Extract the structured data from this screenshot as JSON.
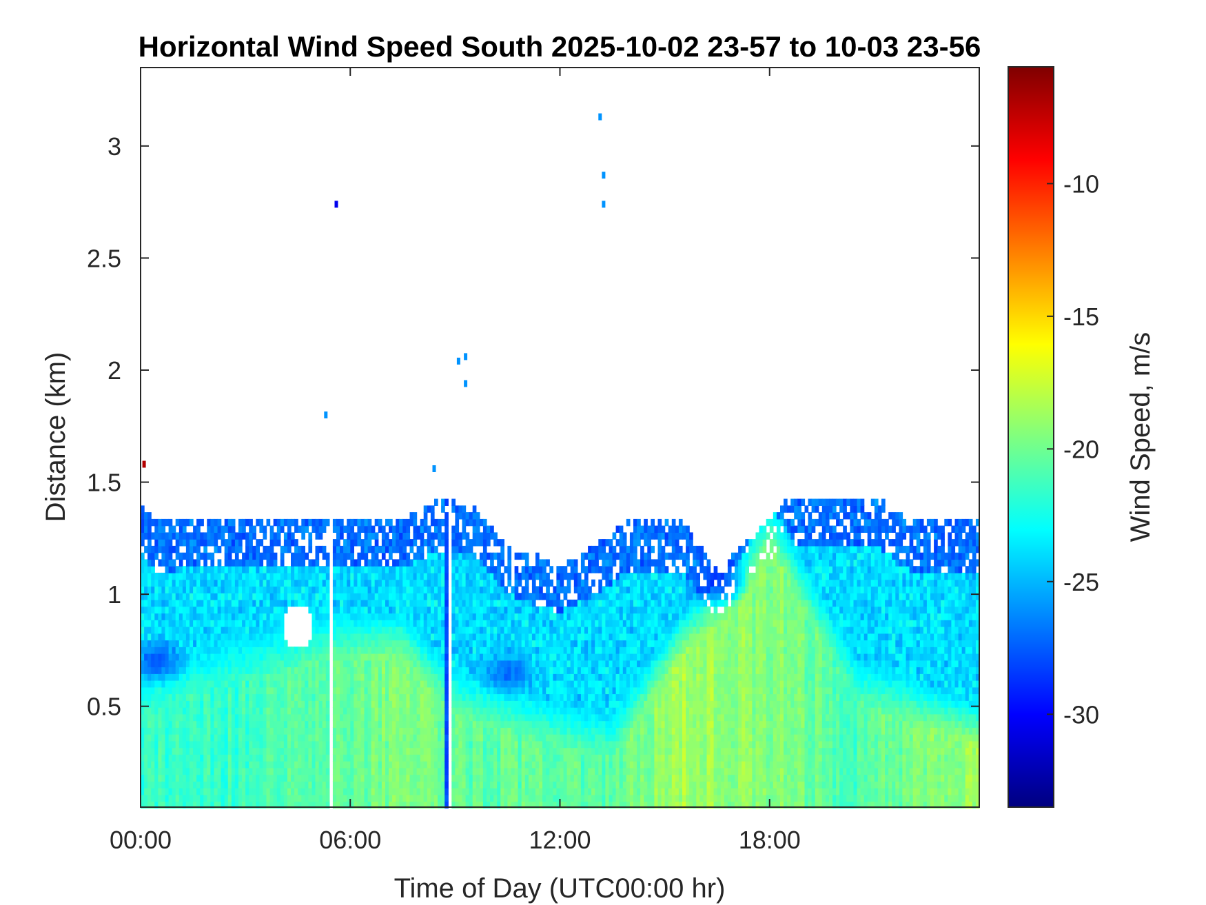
{
  "chart_data": {
    "type": "heatmap",
    "title": "Horizontal Wind Speed South 2025-10-02 23-57 to 10-03 23-56",
    "xlabel": "Time of Day (UTC00:00 hr)",
    "ylabel": "Distance (km)",
    "colorbar_label": "Wind Speed, m/s",
    "xlim": [
      0,
      24
    ],
    "ylim": [
      0.05,
      3.35
    ],
    "clim": [
      -33.5,
      -5.6
    ],
    "colormap": "jet",
    "x_ticks": [
      {
        "value": 0,
        "label": "00:00"
      },
      {
        "value": 6,
        "label": "06:00"
      },
      {
        "value": 12,
        "label": "12:00"
      },
      {
        "value": 18,
        "label": "18:00"
      }
    ],
    "y_ticks": [
      {
        "value": 0.5,
        "label": "0.5"
      },
      {
        "value": 1,
        "label": "1"
      },
      {
        "value": 1.5,
        "label": "1.5"
      },
      {
        "value": 2,
        "label": "2"
      },
      {
        "value": 2.5,
        "label": "2.5"
      },
      {
        "value": 3,
        "label": "3"
      }
    ],
    "colorbar_ticks": [
      {
        "value": -30,
        "label": "-30"
      },
      {
        "value": -25,
        "label": "-25"
      },
      {
        "value": -20,
        "label": "-20"
      },
      {
        "value": -15,
        "label": "-15"
      },
      {
        "value": -10,
        "label": "-10"
      }
    ],
    "data_top_km": [
      {
        "hour": 0.0,
        "km": 1.4
      },
      {
        "hour": 0.5,
        "km": 1.32
      },
      {
        "hour": 1.5,
        "km": 1.34
      },
      {
        "hour": 3.0,
        "km": 1.35
      },
      {
        "hour": 5.5,
        "km": 1.35
      },
      {
        "hour": 7.5,
        "km": 1.33
      },
      {
        "hour": 8.5,
        "km": 1.42
      },
      {
        "hour": 9.5,
        "km": 1.4
      },
      {
        "hour": 10.5,
        "km": 1.22
      },
      {
        "hour": 12.0,
        "km": 1.14
      },
      {
        "hour": 13.0,
        "km": 1.22
      },
      {
        "hour": 14.0,
        "km": 1.33
      },
      {
        "hour": 15.5,
        "km": 1.33
      },
      {
        "hour": 16.5,
        "km": 1.1
      },
      {
        "hour": 17.0,
        "km": 1.18
      },
      {
        "hour": 18.5,
        "km": 1.42
      },
      {
        "hour": 21.0,
        "km": 1.44
      },
      {
        "hour": 22.0,
        "km": 1.33
      },
      {
        "hour": 24.0,
        "km": 1.33
      }
    ],
    "low_layer": [
      {
        "hour": 0.0,
        "km": 0.55,
        "speed": -21.5
      },
      {
        "hour": 3.0,
        "km": 0.7,
        "speed": -21.5
      },
      {
        "hour": 5.5,
        "km": 0.8,
        "speed": -20.5
      },
      {
        "hour": 7.5,
        "km": 0.8,
        "speed": -19.5
      },
      {
        "hour": 9.0,
        "km": 0.55,
        "speed": -20.5
      },
      {
        "hour": 12.0,
        "km": 0.4,
        "speed": -20.5
      },
      {
        "hour": 13.5,
        "km": 0.35,
        "speed": -20.5
      },
      {
        "hour": 15.5,
        "km": 0.8,
        "speed": -18.5
      },
      {
        "hour": 17.0,
        "km": 1.0,
        "speed": -19.0
      },
      {
        "hour": 18.0,
        "km": 1.3,
        "speed": -19.5
      },
      {
        "hour": 20.5,
        "km": 0.6,
        "speed": -21.0
      },
      {
        "hour": 24.0,
        "km": 0.4,
        "speed": -18.5
      }
    ],
    "mid_speed": -24.0,
    "top_speed": -27.0,
    "dark_patches": [
      {
        "hour": 0.5,
        "km": 0.7,
        "speed": -28.0
      },
      {
        "hour": 10.5,
        "km": 0.65,
        "speed": -27.5
      },
      {
        "hour": 16.5,
        "km": 1.05,
        "speed": -28.5
      }
    ],
    "gaps": [
      {
        "hour": 5.45,
        "speed": -30.5
      },
      {
        "hour": 8.8,
        "speed": -28.0
      }
    ],
    "scattered_points": [
      {
        "hour": 13.15,
        "km": 3.13,
        "speed": -26.0
      },
      {
        "hour": 13.25,
        "km": 2.87,
        "speed": -26.0
      },
      {
        "hour": 13.25,
        "km": 2.74,
        "speed": -26.0
      },
      {
        "hour": 5.6,
        "km": 2.74,
        "speed": -30.5
      },
      {
        "hour": 9.3,
        "km": 2.06,
        "speed": -26.0
      },
      {
        "hour": 9.3,
        "km": 1.94,
        "speed": -26.0
      },
      {
        "hour": 9.1,
        "km": 2.04,
        "speed": -26.0
      },
      {
        "hour": 5.3,
        "km": 1.8,
        "speed": -26.0
      },
      {
        "hour": 8.4,
        "km": 1.56,
        "speed": -26.0
      },
      {
        "hour": 0.1,
        "km": 1.58,
        "speed": -7.0
      }
    ]
  }
}
